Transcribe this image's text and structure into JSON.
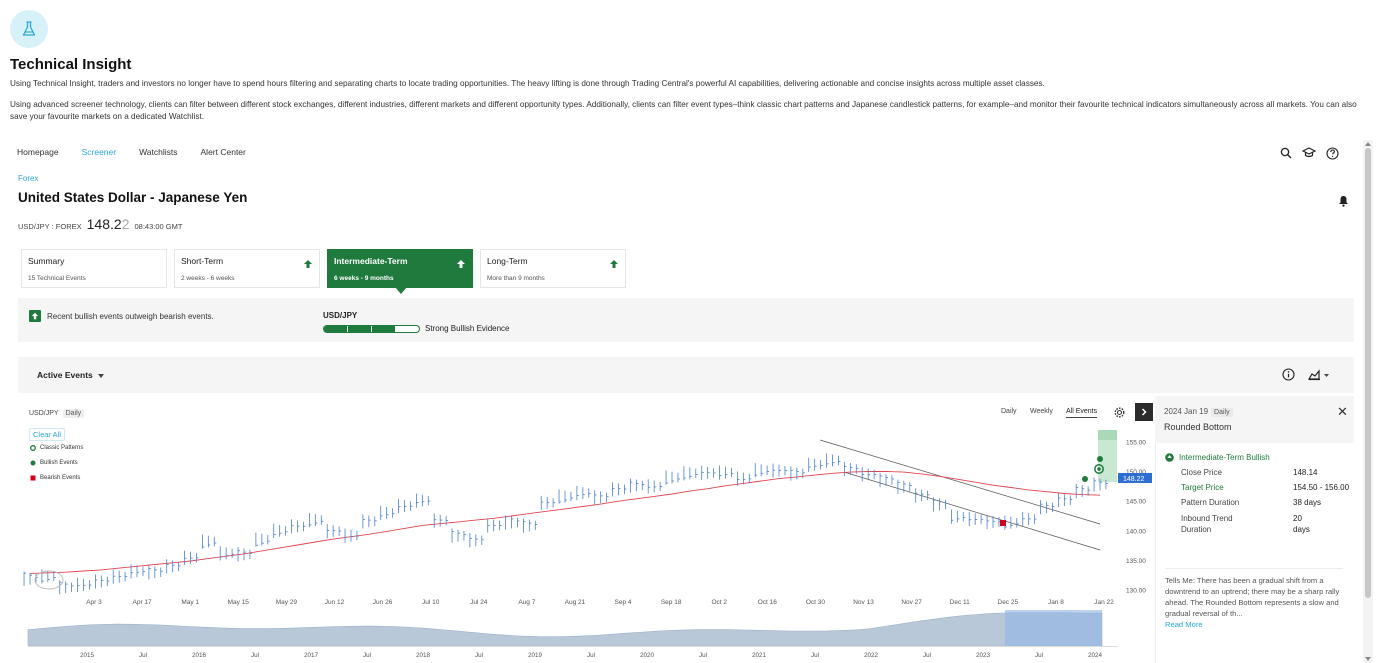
{
  "page": {
    "title": "Technical Insight",
    "intro_1": "Using Technical Insight, traders and investors no longer have to spend hours filtering and separating charts to locate trading opportunities. The heavy lifting is done through Trading Central's powerful AI capabilities, delivering actionable and concise insights across multiple asset classes.",
    "intro_2": "Using advanced screener technology, clients can filter between different stock exchanges, different industries, different markets and different opportunity types. Additionally, clients can filter event types–think classic chart patterns and Japanese candlestick patterns, for example–and monitor their favourite technical indicators simultaneously across all markets. You can also save your favourite markets on a dedicated Watchlist."
  },
  "nav": {
    "items": [
      {
        "label": "Homepage",
        "active": false
      },
      {
        "label": "Screener",
        "active": true
      },
      {
        "label": "Watchlists",
        "active": false
      },
      {
        "label": "Alert Center",
        "active": false
      }
    ],
    "icons": [
      "search-icon",
      "graduation-cap-icon",
      "help-icon"
    ]
  },
  "instrument": {
    "category": "Forex",
    "name": "United States Dollar - Japanese Yen",
    "symbol": "USD/JPY : FOREX",
    "price_main": "148.2",
    "price_last": "2",
    "time": "08:43:00 GMT"
  },
  "tabs": [
    {
      "title": "Summary",
      "sub": "15 Technical Events",
      "arrow": false,
      "active": false
    },
    {
      "title": "Short-Term",
      "sub": "2 weeks - 6 weeks",
      "arrow": true,
      "active": false
    },
    {
      "title": "Intermediate-Term",
      "sub": "6 weeks - 9 months",
      "arrow": true,
      "active": true
    },
    {
      "title": "Long-Term",
      "sub": "More than 9 months",
      "arrow": true,
      "active": false
    }
  ],
  "summary": {
    "message": "Recent bullish events outweigh bearish events.",
    "pair": "USD/JPY",
    "evidence": "Strong Bullish Evidence",
    "level_segments_filled": 4,
    "level_segments_total": 5
  },
  "events_bar": {
    "label": "Active Events"
  },
  "chart": {
    "pair": "USD/JPY",
    "interval": "Daily",
    "clear_all": "Clear All",
    "legend": [
      "Classic Patterns",
      "Bullish Events",
      "Bearish Events"
    ],
    "periods": [
      "Daily",
      "Weekly",
      "All Events"
    ],
    "active_period": "All Events",
    "last_price_label": "148.22",
    "colors": {
      "price": "#4a7fc8",
      "ma": "#e0454e",
      "bull": "#1f7a3d",
      "bear": "#d0021b",
      "target": "#c9e8d2"
    }
  },
  "chart_data": {
    "type": "line",
    "title": "",
    "xlabel": "",
    "ylabel": "",
    "x_ticks": [
      "Apr 3",
      "Apr 17",
      "May 1",
      "May 15",
      "May 29",
      "Jun 12",
      "Jun 26",
      "Jul 10",
      "Jul 24",
      "Aug 7",
      "Aug 21",
      "Sep 4",
      "Sep 18",
      "Oct 2",
      "Oct 16",
      "Oct 30",
      "Nov 13",
      "Nov 27",
      "Dec 11",
      "Dec 25",
      "Jan 8",
      "Jan 22"
    ],
    "y_ticks": [
      130,
      135,
      140,
      145,
      150,
      155
    ],
    "ylim": [
      130,
      156
    ],
    "series": [
      {
        "values": [
          132.5,
          131.8,
          131.0,
          130.8,
          131.6,
          132.3,
          133.0,
          133.4,
          134.2,
          135.4,
          137.6,
          135.8,
          136.4,
          137.9,
          139.6,
          140.8,
          141.3,
          140.0,
          139.0,
          141.8,
          142.7,
          144.1,
          144.9,
          141.8,
          139.6,
          138.6,
          140.9,
          142.0,
          141.3,
          144.8,
          145.2,
          146.1,
          145.9,
          147.1,
          148.0,
          147.4,
          148.4,
          149.2,
          149.8,
          149.5,
          148.7,
          149.7,
          150.2,
          150.0,
          150.9,
          151.5,
          150.7,
          149.5,
          149.0,
          147.9,
          146.2,
          144.9,
          142.0,
          141.9,
          141.6,
          140.9,
          142.0,
          144.3,
          145.4,
          147.1,
          148.2
        ]
      },
      {
        "values": [
          132.8,
          132.9,
          133.0,
          133.2,
          133.4,
          133.7,
          134.0,
          134.3,
          134.6,
          134.9,
          135.3,
          135.7,
          136.1,
          136.6,
          137.1,
          137.6,
          138.1,
          138.6,
          139.0,
          139.4,
          139.9,
          140.4,
          140.9,
          141.2,
          141.5,
          141.8,
          142.1,
          142.5,
          142.9,
          143.3,
          143.7,
          144.1,
          144.5,
          145.0,
          145.4,
          145.8,
          146.2,
          146.7,
          147.1,
          147.6,
          148.0,
          148.4,
          148.8,
          149.1,
          149.4,
          149.7,
          149.9,
          150.0,
          150.0,
          149.9,
          149.6,
          149.2,
          148.7,
          148.2,
          147.7,
          147.3,
          146.9,
          146.6,
          146.3,
          146.1,
          146.0
        ]
      }
    ],
    "overview_ticks": [
      "2015",
      "Jul",
      "2016",
      "Jul",
      "2017",
      "Jul",
      "2018",
      "Jul",
      "2019",
      "Jul",
      "2020",
      "Jul",
      "2021",
      "Jul",
      "2022",
      "Jul",
      "2023",
      "Jul",
      "2024"
    ]
  },
  "detail": {
    "date": "2024 Jan 19",
    "interval": "Daily",
    "pattern": "Rounded Bottom",
    "signal": "Intermediate-Term Bullish",
    "rows": [
      {
        "label": "Close Price",
        "value": "148.14",
        "green": false
      },
      {
        "label": "Target Price",
        "value": "154.50 - 156.00",
        "green": true
      },
      {
        "label": "Pattern Duration",
        "value": "38 days",
        "green": false
      },
      {
        "label": "Inbound Trend Duration",
        "value": "20 days",
        "green": false
      }
    ],
    "description": "Tells Me: There has been a gradual shift from a downtrend to an uptrend; there may be a sharp rally ahead. The Rounded Bottom represents a slow and gradual reversal of th...",
    "read_more": "Read More"
  }
}
